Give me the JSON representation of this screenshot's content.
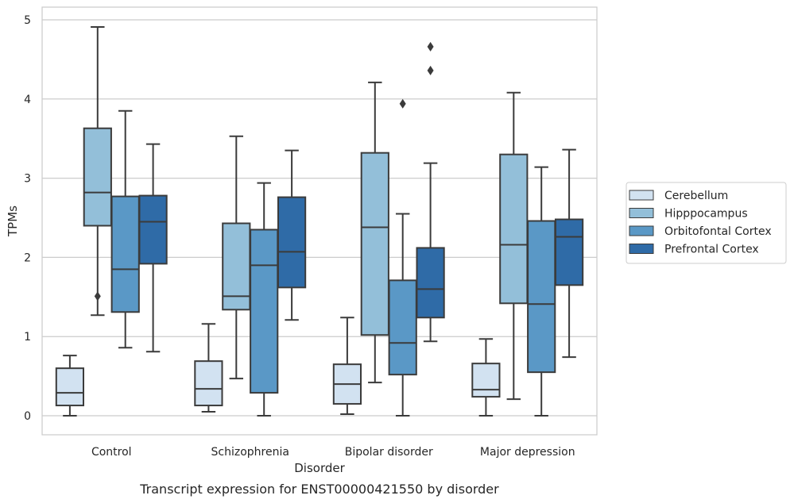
{
  "chart_data": {
    "type": "box",
    "caption": "Transcript expression for ENST00000421550 by disorder",
    "xlabel": "Disorder",
    "ylabel": "TPMs",
    "ylim": [
      -0.24,
      5.16
    ],
    "yticks": [
      0,
      1,
      2,
      3,
      4,
      5
    ],
    "grid": "horizontal",
    "legend_position": "right",
    "categories": [
      "Control",
      "Schizophrenia",
      "Bipolar disorder",
      "Major depression"
    ],
    "series": [
      {
        "name": "Cerebellum",
        "color": "#d2e2f1",
        "boxes": [
          {
            "whisker_low": 0.0,
            "q1": 0.13,
            "median": 0.29,
            "q3": 0.6,
            "whisker_high": 0.76,
            "outliers": []
          },
          {
            "whisker_low": 0.05,
            "q1": 0.13,
            "median": 0.34,
            "q3": 0.69,
            "whisker_high": 1.16,
            "outliers": []
          },
          {
            "whisker_low": 0.02,
            "q1": 0.15,
            "median": 0.4,
            "q3": 0.65,
            "whisker_high": 1.24,
            "outliers": []
          },
          {
            "whisker_low": 0.0,
            "q1": 0.24,
            "median": 0.33,
            "q3": 0.66,
            "whisker_high": 0.97,
            "outliers": []
          }
        ]
      },
      {
        "name": "Hipppocampus",
        "color": "#93bfd9",
        "boxes": [
          {
            "whisker_low": 1.27,
            "q1": 2.4,
            "median": 2.82,
            "q3": 3.63,
            "whisker_high": 4.91,
            "outliers": [
              1.51
            ]
          },
          {
            "whisker_low": 0.47,
            "q1": 1.34,
            "median": 1.51,
            "q3": 2.43,
            "whisker_high": 3.53,
            "outliers": []
          },
          {
            "whisker_low": 0.42,
            "q1": 1.02,
            "median": 2.38,
            "q3": 3.32,
            "whisker_high": 4.21,
            "outliers": []
          },
          {
            "whisker_low": 0.21,
            "q1": 1.42,
            "median": 2.16,
            "q3": 3.3,
            "whisker_high": 4.08,
            "outliers": []
          }
        ]
      },
      {
        "name": "Orbitofontal Cortex",
        "color": "#5a98c6",
        "boxes": [
          {
            "whisker_low": 0.86,
            "q1": 1.31,
            "median": 1.85,
            "q3": 2.77,
            "whisker_high": 3.85,
            "outliers": []
          },
          {
            "whisker_low": 0.0,
            "q1": 0.29,
            "median": 1.9,
            "q3": 2.35,
            "whisker_high": 2.94,
            "outliers": []
          },
          {
            "whisker_low": 0.0,
            "q1": 0.52,
            "median": 0.92,
            "q3": 1.71,
            "whisker_high": 2.55,
            "outliers": [
              3.94
            ]
          },
          {
            "whisker_low": 0.0,
            "q1": 0.55,
            "median": 1.41,
            "q3": 2.46,
            "whisker_high": 3.14,
            "outliers": []
          }
        ]
      },
      {
        "name": "Prefrontal Cortex",
        "color": "#2f6ba7",
        "boxes": [
          {
            "whisker_low": 0.81,
            "q1": 1.92,
            "median": 2.45,
            "q3": 2.78,
            "whisker_high": 3.43,
            "outliers": []
          },
          {
            "whisker_low": 1.21,
            "q1": 1.62,
            "median": 2.07,
            "q3": 2.76,
            "whisker_high": 3.35,
            "outliers": []
          },
          {
            "whisker_low": 0.94,
            "q1": 1.24,
            "median": 1.6,
            "q3": 2.12,
            "whisker_high": 3.19,
            "outliers": [
              4.36,
              4.66
            ]
          },
          {
            "whisker_low": 0.74,
            "q1": 1.65,
            "median": 2.26,
            "q3": 2.48,
            "whisker_high": 3.36,
            "outliers": []
          }
        ]
      }
    ]
  }
}
